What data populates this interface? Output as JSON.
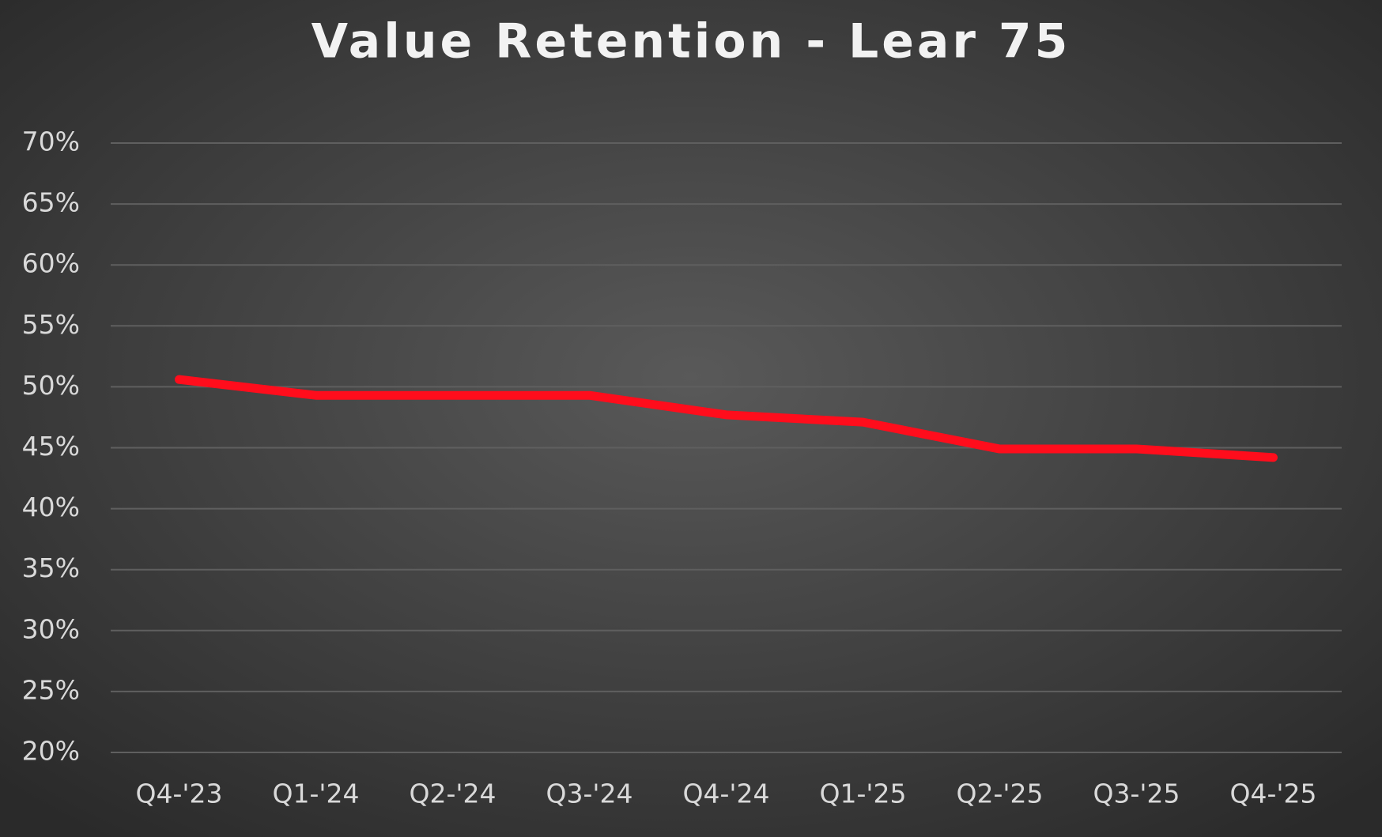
{
  "chart_data": {
    "type": "line",
    "title": "Value Retention - Lear 75",
    "categories": [
      "Q4-'23",
      "Q1-'24",
      "Q2-'24",
      "Q3-'24",
      "Q4-'24",
      "Q1-'25",
      "Q2-'25",
      "Q3-'25",
      "Q4-'25"
    ],
    "series": [
      {
        "name": "Value Retention",
        "color": "#ff0d1c",
        "values": [
          50.6,
          49.3,
          49.3,
          49.3,
          47.7,
          47.1,
          44.9,
          44.9,
          44.2
        ]
      }
    ],
    "ylim": [
      20,
      70
    ],
    "yticks": [
      {
        "value": 20,
        "label": "20%"
      },
      {
        "value": 25,
        "label": "25%"
      },
      {
        "value": 30,
        "label": "30%"
      },
      {
        "value": 35,
        "label": "35%"
      },
      {
        "value": 40,
        "label": "40%"
      },
      {
        "value": 45,
        "label": "45%"
      },
      {
        "value": 50,
        "label": "50%"
      },
      {
        "value": 55,
        "label": "55%"
      },
      {
        "value": 60,
        "label": "60%"
      },
      {
        "value": 65,
        "label": "65%"
      },
      {
        "value": 70,
        "label": "70%"
      }
    ],
    "grid": true
  }
}
